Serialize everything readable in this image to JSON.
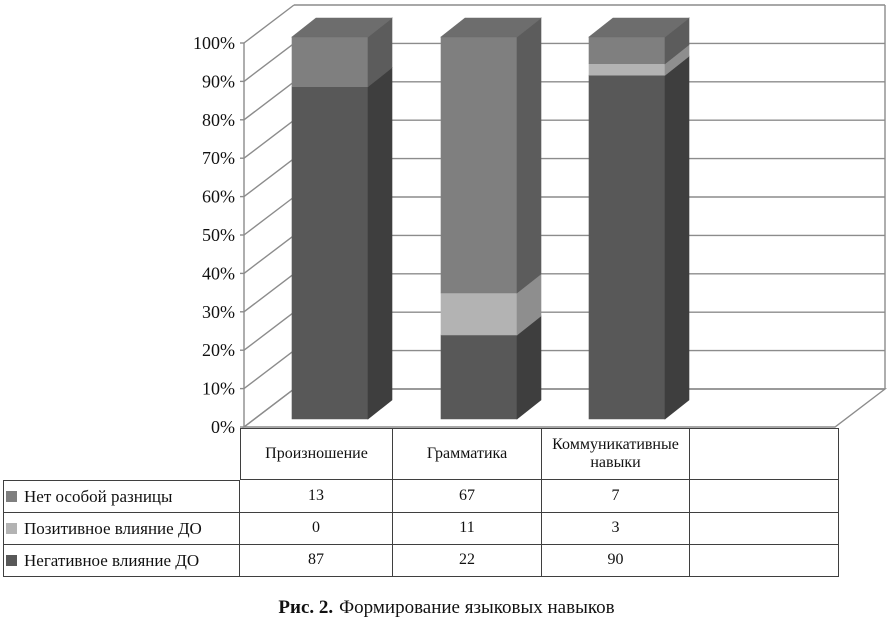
{
  "figure": {
    "caption_prefix": "Рис. 2.",
    "caption_text": "Формирование языковых навыков"
  },
  "chart_data": {
    "type": "bar",
    "subtype": "100%-stacked-column-3d",
    "title": "",
    "xlabel": "",
    "ylabel": "",
    "categories": [
      "Произношение",
      "Грамматика",
      "Коммуникативные навыки"
    ],
    "series": [
      {
        "name": "Нет особой разницы",
        "values": [
          13,
          67,
          7
        ],
        "color_front": "#7f7f7f",
        "color_side": "#5c5c5c",
        "color_top": "#6d6d6d"
      },
      {
        "name": "Позитивное влияние ДО",
        "values": [
          0,
          11,
          3
        ],
        "color_front": "#b3b3b3",
        "color_side": "#8e8e8e",
        "color_top": "#a2a2a2"
      },
      {
        "name": "Негативное влияние ДО",
        "values": [
          87,
          22,
          90
        ],
        "color_front": "#585858",
        "color_side": "#3e3e3e",
        "color_top": "#4b4b4b"
      }
    ],
    "stack_order_bottom_to_top": [
      "Негативное влияние ДО",
      "Позитивное влияние ДО",
      "Нет особой разницы"
    ],
    "y_ticks": [
      "0%",
      "10%",
      "20%",
      "30%",
      "40%",
      "50%",
      "60%",
      "70%",
      "80%",
      "90%",
      "100%"
    ],
    "ylim": [
      0,
      100
    ],
    "grid": true,
    "legend_position": "table-left-column",
    "colors": {
      "gridline": "#8c8c8c",
      "axis": "#8c8c8c",
      "table_border": "#3f3f3f",
      "text": "#111111",
      "background": "#ffffff"
    }
  }
}
